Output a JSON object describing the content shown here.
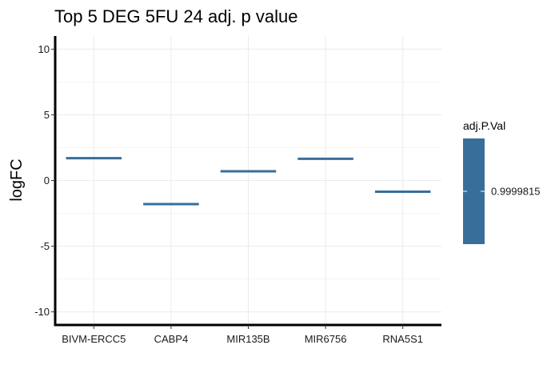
{
  "chart_data": {
    "type": "bar",
    "title": "Top 5 DEG 5FU 24 adj. p value",
    "xlabel": "",
    "ylabel": "logFC",
    "categories": [
      "BIVM-ERCC5",
      "CABP4",
      "MIR135B",
      "MIR6756",
      "RNA5S1"
    ],
    "values": [
      1.7,
      -1.8,
      0.7,
      1.65,
      -0.85
    ],
    "ylim": [
      -11,
      11
    ],
    "yticks": [
      -10,
      -5,
      0,
      5,
      10
    ],
    "grid": true,
    "series_color": "#386e9a",
    "legend": {
      "title": "adj.P.Val",
      "placement": "right",
      "labels": [
        "0.9999815"
      ],
      "color": "#386e9a"
    }
  }
}
